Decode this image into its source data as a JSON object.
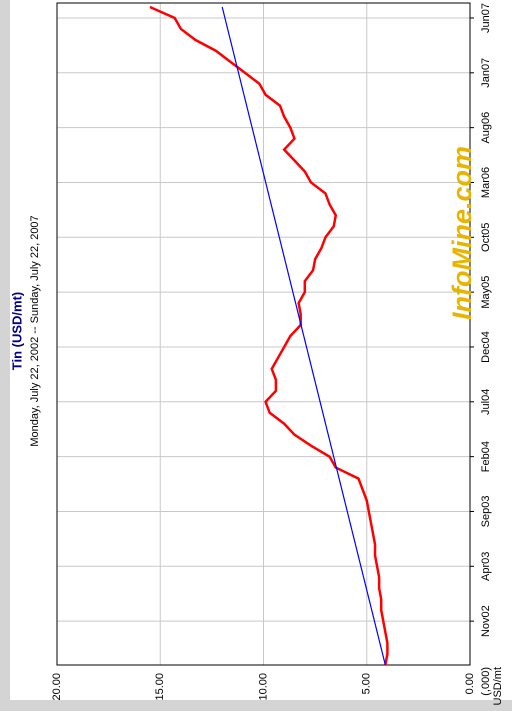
{
  "chart_data": {
    "type": "line",
    "title": "Tin (USD/mt)",
    "subtitle": "Monday, July 22, 2002  --  Sunday, July 22, 2007",
    "ylabel": "USD/mt",
    "y_unit": "(,000)",
    "watermark": "InfoMine.com",
    "x": [
      "2002-07",
      "2002-08",
      "2002-09",
      "2002-10",
      "2002-11",
      "2002-12",
      "2003-01",
      "2003-02",
      "2003-03",
      "2003-04",
      "2003-05",
      "2003-06",
      "2003-07",
      "2003-08",
      "2003-09",
      "2003-10",
      "2003-11",
      "2003-12",
      "2004-01",
      "2004-02",
      "2004-03",
      "2004-04",
      "2004-05",
      "2004-06",
      "2004-07",
      "2004-08",
      "2004-09",
      "2004-10",
      "2004-11",
      "2004-12",
      "2005-01",
      "2005-02",
      "2005-03",
      "2005-04",
      "2005-05",
      "2005-06",
      "2005-07",
      "2005-08",
      "2005-09",
      "2005-10",
      "2005-11",
      "2005-12",
      "2006-01",
      "2006-02",
      "2006-03",
      "2006-04",
      "2006-05",
      "2006-06",
      "2006-07",
      "2006-08",
      "2006-09",
      "2006-10",
      "2006-11",
      "2006-12",
      "2007-01",
      "2007-02",
      "2007-03",
      "2007-04",
      "2007-05",
      "2007-06",
      "2007-07"
    ],
    "series": [
      {
        "color": "#ff0000",
        "values": [
          4.1,
          4.0,
          4.0,
          4.1,
          4.2,
          4.3,
          4.3,
          4.4,
          4.4,
          4.5,
          4.6,
          4.6,
          4.7,
          4.8,
          4.9,
          5.0,
          5.2,
          5.4,
          6.5,
          6.8,
          7.7,
          8.5,
          9.0,
          9.7,
          9.9,
          9.4,
          9.4,
          9.6,
          9.3,
          9.0,
          8.7,
          8.2,
          8.2,
          8.3,
          8.0,
          8.0,
          7.6,
          7.5,
          7.2,
          7.0,
          6.6,
          6.5,
          6.8,
          7.0,
          7.7,
          8.0,
          8.5,
          9.0,
          8.5,
          8.7,
          9.0,
          9.2,
          9.9,
          10.2,
          10.9,
          11.6,
          12.3,
          13.3,
          14.0,
          14.3,
          15.5
        ]
      }
    ],
    "trend_line": {
      "color": "#0000ff",
      "x": [
        "2002-07",
        "2007-07"
      ],
      "values": [
        4.1,
        12.0
      ]
    },
    "xlim": [
      "2002-07",
      "2007-07"
    ],
    "xticks": [
      {
        "value": "2002-11",
        "label": "Nov02"
      },
      {
        "value": "2003-04",
        "label": "Apr03"
      },
      {
        "value": "2003-09",
        "label": "Sep03"
      },
      {
        "value": "2004-02",
        "label": "Feb04"
      },
      {
        "value": "2004-07",
        "label": "Jul04"
      },
      {
        "value": "2004-12",
        "label": "Dec04"
      },
      {
        "value": "2005-05",
        "label": "May05"
      },
      {
        "value": "2005-10",
        "label": "Oct05"
      },
      {
        "value": "2006-03",
        "label": "Mar06"
      },
      {
        "value": "2006-08",
        "label": "Aug06"
      },
      {
        "value": "2007-01",
        "label": "Jan07"
      },
      {
        "value": "2007-06",
        "label": "Jun07"
      }
    ],
    "ylim": [
      0,
      20
    ],
    "yticks": [
      {
        "value": 0,
        "label": "0.00"
      },
      {
        "value": 5,
        "label": "5.00"
      },
      {
        "value": 10,
        "label": "10.00"
      },
      {
        "value": 15,
        "label": "15.00"
      },
      {
        "value": 20,
        "label": "20.00"
      }
    ],
    "grid": true
  }
}
